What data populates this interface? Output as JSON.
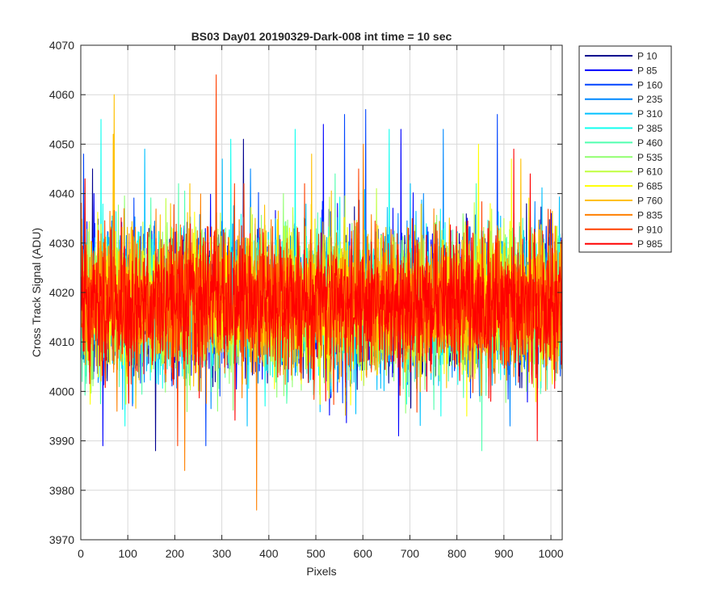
{
  "chart_data": {
    "type": "line",
    "title": "BS03 Day01 20190329-Dark-008 int time = 10 sec",
    "xlabel": "Pixels",
    "ylabel": "Cross Track Signal (ADU)",
    "xlim": [
      0,
      1024
    ],
    "ylim": [
      3970,
      4070
    ],
    "xticks": [
      "0",
      "100",
      "200",
      "300",
      "400",
      "500",
      "600",
      "700",
      "800",
      "900",
      "1000"
    ],
    "yticks": [
      "3970",
      "3980",
      "3990",
      "4000",
      "4010",
      "4020",
      "4030",
      "4040",
      "4050",
      "4060",
      "4070"
    ],
    "grid": true,
    "legend_location": "outside-top-right",
    "sample_mean": 4018,
    "sample_spread": 7,
    "series": [
      {
        "name": "P 10",
        "color": "#00008f",
        "spikes": [
          [
            345,
            4051
          ],
          [
            24,
            4045
          ],
          [
            158,
            3988
          ]
        ]
      },
      {
        "name": "P 85",
        "color": "#0000ff",
        "spikes": [
          [
            515,
            4054
          ],
          [
            680,
            4053
          ],
          [
            46,
            3989
          ],
          [
            675,
            3991
          ]
        ]
      },
      {
        "name": "P 160",
        "color": "#0044ff",
        "spikes": [
          [
            605,
            4057
          ],
          [
            560,
            4056
          ],
          [
            885,
            4056
          ],
          [
            5,
            4048
          ],
          [
            265,
            3989
          ]
        ]
      },
      {
        "name": "P 235",
        "color": "#0088ff",
        "spikes": [
          [
            770,
            4053
          ],
          [
            360,
            4045
          ],
          [
            728,
            4040
          ]
        ]
      },
      {
        "name": "P 310",
        "color": "#00c0ff",
        "spikes": [
          [
            135,
            4049
          ],
          [
            300,
            4047
          ],
          [
            700,
            4042
          ]
        ]
      },
      {
        "name": "P 385",
        "color": "#10ffef",
        "spikes": [
          [
            42,
            4055
          ],
          [
            455,
            4053
          ],
          [
            655,
            4053
          ],
          [
            318,
            4051
          ]
        ]
      },
      {
        "name": "P 460",
        "color": "#50ffaf",
        "spikes": [
          [
            852,
            3988
          ],
          [
            540,
            4044
          ]
        ]
      },
      {
        "name": "P 535",
        "color": "#90ff6f",
        "spikes": [
          [
            430,
            4040
          ],
          [
            290,
            3996
          ]
        ]
      },
      {
        "name": "P 610",
        "color": "#c0ff3f",
        "spikes": [
          [
            180,
            4039
          ],
          [
            628,
            4041
          ]
        ]
      },
      {
        "name": "P 685",
        "color": "#ffff00",
        "spikes": [
          [
            845,
            4050
          ],
          [
            915,
            4047
          ],
          [
            820,
            3995
          ]
        ]
      },
      {
        "name": "P 760",
        "color": "#ffc000",
        "spikes": [
          [
            70,
            4060
          ],
          [
            68,
            4052
          ],
          [
            490,
            4048
          ],
          [
            935,
            4047
          ]
        ]
      },
      {
        "name": "P 835",
        "color": "#ff8000",
        "spikes": [
          [
            373,
            3976
          ],
          [
            220,
            3984
          ],
          [
            600,
            4050
          ]
        ]
      },
      {
        "name": "P 910",
        "color": "#ff4000",
        "spikes": [
          [
            287,
            4064
          ],
          [
            205,
            3989
          ],
          [
            590,
            4045
          ]
        ]
      },
      {
        "name": "P 985",
        "color": "#ff0000",
        "spikes": [
          [
            920,
            4049
          ],
          [
            970,
            3990
          ],
          [
            8,
            4043
          ],
          [
            955,
            4044
          ]
        ]
      }
    ]
  }
}
